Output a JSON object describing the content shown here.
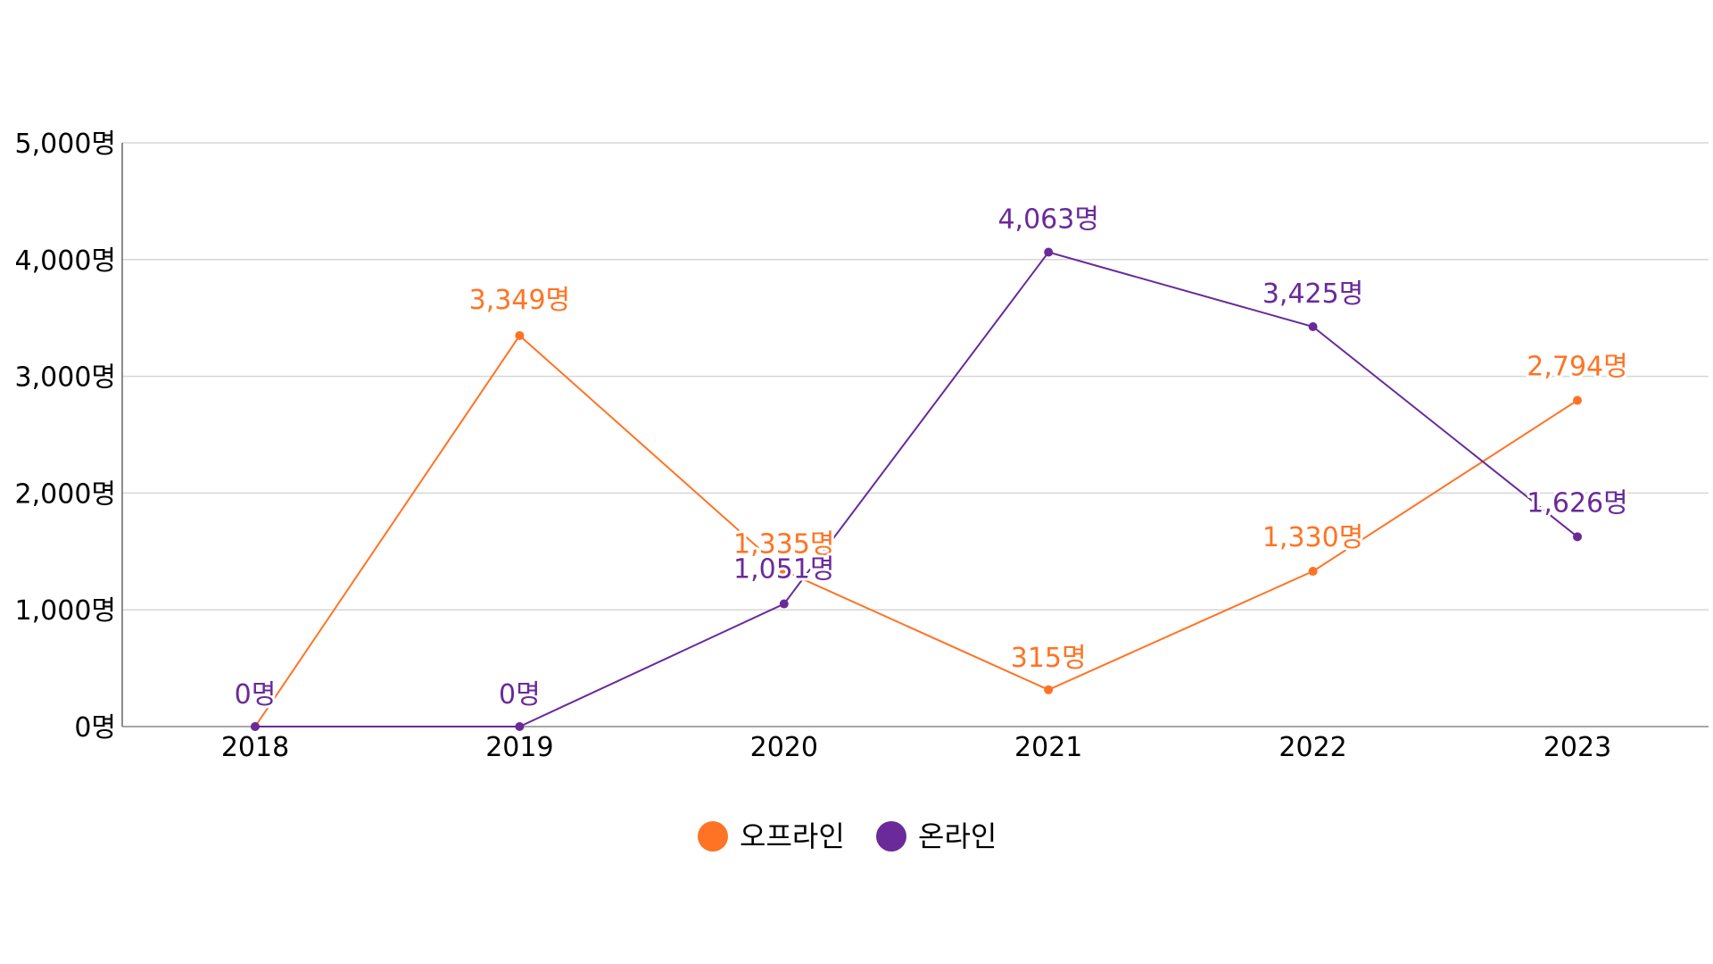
{
  "chart_data": {
    "type": "line",
    "title": "",
    "xlabel": "",
    "ylabel": "",
    "categories": [
      "2018",
      "2019",
      "2020",
      "2021",
      "2022",
      "2023"
    ],
    "ylim": [
      0,
      5000
    ],
    "yticks": [
      0,
      1000,
      2000,
      3000,
      4000,
      5000
    ],
    "ytick_labels": [
      "0명",
      "1,000명",
      "2,000명",
      "3,000명",
      "4,000명",
      "5,000명"
    ],
    "grid": true,
    "legend_position": "bottom-center",
    "unit": "명",
    "series": [
      {
        "name": "오프라인",
        "color": "#FF7324",
        "values": [
          0,
          3349,
          1335,
          315,
          1330,
          2794
        ],
        "labels": [
          "",
          "3,349명",
          "1,335명",
          "315명",
          "1,330명",
          "2,794명"
        ]
      },
      {
        "name": "온라인",
        "color": "#6A2A9A",
        "values": [
          0,
          0,
          1051,
          4063,
          3425,
          1626
        ],
        "labels": [
          "0명",
          "0명",
          "1,051명",
          "4,063명",
          "3,425명",
          "1,626명"
        ]
      }
    ]
  }
}
